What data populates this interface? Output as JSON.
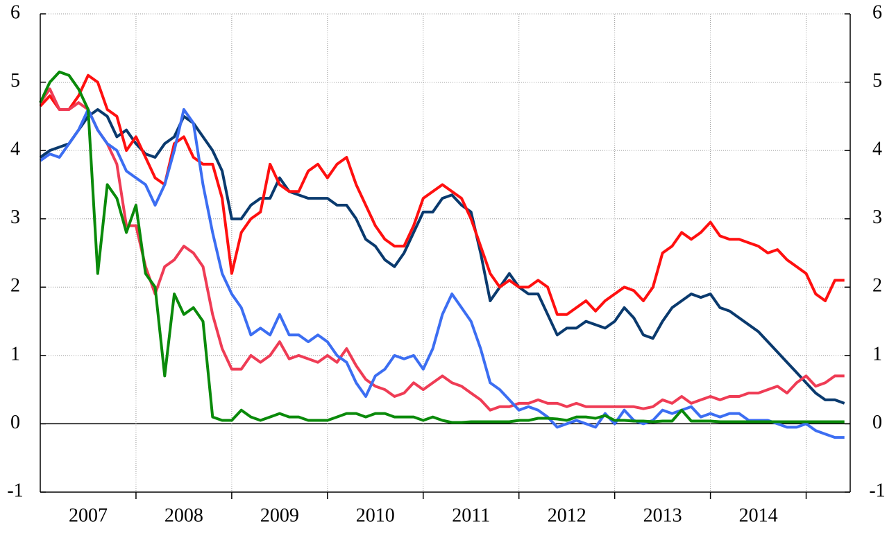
{
  "chart_data": {
    "type": "line",
    "x": [
      2007.0,
      2007.1,
      2007.2,
      2007.3,
      2007.4,
      2007.5,
      2007.6,
      2007.7,
      2007.8,
      2007.9,
      2008.0,
      2008.1,
      2008.2,
      2008.3,
      2008.4,
      2008.5,
      2008.6,
      2008.7,
      2008.8,
      2008.9,
      2009.0,
      2009.1,
      2009.2,
      2009.3,
      2009.4,
      2009.5,
      2009.6,
      2009.7,
      2009.8,
      2009.9,
      2010.0,
      2010.1,
      2010.2,
      2010.3,
      2010.4,
      2010.5,
      2010.6,
      2010.7,
      2010.8,
      2010.9,
      2011.0,
      2011.1,
      2011.2,
      2011.3,
      2011.4,
      2011.5,
      2011.6,
      2011.7,
      2011.8,
      2011.9,
      2012.0,
      2012.1,
      2012.2,
      2012.3,
      2012.4,
      2012.5,
      2012.6,
      2012.7,
      2012.8,
      2012.9,
      2013.0,
      2013.1,
      2013.2,
      2013.3,
      2013.4,
      2013.5,
      2013.6,
      2013.7,
      2013.8,
      2013.9,
      2014.0,
      2014.1,
      2014.2,
      2014.3,
      2014.4,
      2014.5,
      2014.6,
      2014.7,
      2014.8,
      2014.9,
      2015.0,
      2015.1,
      2015.2,
      2015.3,
      2015.4
    ],
    "series": [
      {
        "color": "#0a3a6e",
        "values": [
          3.9,
          4.0,
          4.05,
          4.1,
          4.3,
          4.5,
          4.6,
          4.5,
          4.2,
          4.3,
          4.1,
          3.95,
          3.9,
          4.1,
          4.2,
          4.5,
          4.4,
          4.2,
          4.0,
          3.7,
          3.0,
          3.0,
          3.2,
          3.3,
          3.3,
          3.6,
          3.4,
          3.35,
          3.3,
          3.3,
          3.3,
          3.2,
          3.2,
          3.0,
          2.7,
          2.6,
          2.4,
          2.3,
          2.5,
          2.8,
          3.1,
          3.1,
          3.3,
          3.35,
          3.2,
          3.1,
          2.5,
          1.8,
          2.0,
          2.2,
          2.0,
          1.9,
          1.9,
          1.6,
          1.3,
          1.4,
          1.4,
          1.5,
          1.45,
          1.4,
          1.5,
          1.7,
          1.55,
          1.3,
          1.25,
          1.5,
          1.7,
          1.8,
          1.9,
          1.85,
          1.9,
          1.7,
          1.65,
          1.55,
          1.45,
          1.35,
          1.2,
          1.05,
          0.9,
          0.75,
          0.6,
          0.45,
          0.35,
          0.35,
          0.3
        ]
      },
      {
        "color": "#ff1010",
        "values": [
          4.65,
          4.8,
          4.6,
          4.6,
          4.8,
          5.1,
          5.0,
          4.6,
          4.5,
          4.0,
          4.2,
          3.9,
          3.6,
          3.5,
          4.1,
          4.2,
          3.9,
          3.8,
          3.8,
          3.3,
          2.2,
          2.8,
          3.0,
          3.1,
          3.8,
          3.5,
          3.4,
          3.4,
          3.7,
          3.8,
          3.6,
          3.8,
          3.9,
          3.5,
          3.2,
          2.9,
          2.7,
          2.6,
          2.6,
          2.9,
          3.3,
          3.4,
          3.5,
          3.4,
          3.3,
          3.0,
          2.6,
          2.2,
          2.0,
          2.1,
          2.0,
          2.0,
          2.1,
          2.0,
          1.6,
          1.6,
          1.7,
          1.8,
          1.65,
          1.8,
          1.9,
          2.0,
          1.95,
          1.8,
          2.0,
          2.5,
          2.6,
          2.8,
          2.7,
          2.8,
          2.95,
          2.75,
          2.7,
          2.7,
          2.65,
          2.6,
          2.5,
          2.55,
          2.4,
          2.3,
          2.2,
          1.9,
          1.8,
          2.1,
          2.1
        ]
      },
      {
        "color": "#ef3c55",
        "values": [
          4.7,
          4.9,
          4.6,
          4.6,
          4.7,
          4.6,
          4.3,
          4.1,
          3.8,
          2.9,
          2.9,
          2.3,
          1.9,
          2.3,
          2.4,
          2.6,
          2.5,
          2.3,
          1.6,
          1.1,
          0.8,
          0.8,
          1.0,
          0.9,
          1.0,
          1.2,
          0.95,
          1.0,
          0.95,
          0.9,
          1.0,
          0.9,
          1.1,
          0.85,
          0.65,
          0.55,
          0.5,
          0.4,
          0.45,
          0.6,
          0.5,
          0.6,
          0.7,
          0.6,
          0.55,
          0.45,
          0.35,
          0.2,
          0.25,
          0.25,
          0.3,
          0.3,
          0.35,
          0.3,
          0.3,
          0.25,
          0.3,
          0.25,
          0.25,
          0.25,
          0.25,
          0.25,
          0.25,
          0.22,
          0.25,
          0.35,
          0.3,
          0.4,
          0.3,
          0.35,
          0.4,
          0.35,
          0.4,
          0.4,
          0.45,
          0.45,
          0.5,
          0.55,
          0.45,
          0.6,
          0.7,
          0.55,
          0.6,
          0.7,
          0.7
        ]
      },
      {
        "color": "#3c6ef2",
        "values": [
          3.85,
          3.95,
          3.9,
          4.1,
          4.3,
          4.6,
          4.3,
          4.1,
          4.0,
          3.7,
          3.6,
          3.5,
          3.2,
          3.5,
          4.0,
          4.6,
          4.4,
          3.5,
          2.8,
          2.2,
          1.9,
          1.7,
          1.3,
          1.4,
          1.3,
          1.6,
          1.3,
          1.3,
          1.2,
          1.3,
          1.2,
          1.0,
          0.9,
          0.6,
          0.4,
          0.7,
          0.8,
          1.0,
          0.95,
          1.0,
          0.8,
          1.1,
          1.6,
          1.9,
          1.7,
          1.5,
          1.1,
          0.6,
          0.5,
          0.35,
          0.2,
          0.25,
          0.2,
          0.1,
          -0.05,
          0.0,
          0.05,
          0.0,
          -0.05,
          0.15,
          0.0,
          0.2,
          0.05,
          0.0,
          0.05,
          0.2,
          0.15,
          0.2,
          0.25,
          0.1,
          0.15,
          0.1,
          0.15,
          0.15,
          0.05,
          0.05,
          0.05,
          0.0,
          -0.05,
          -0.05,
          0.0,
          -0.1,
          -0.15,
          -0.2,
          -0.2
        ]
      },
      {
        "color": "#0a8a0a",
        "values": [
          4.7,
          5.0,
          5.15,
          5.1,
          4.9,
          4.6,
          2.2,
          3.5,
          3.3,
          2.8,
          3.2,
          2.2,
          2.0,
          0.7,
          1.9,
          1.6,
          1.7,
          1.5,
          0.1,
          0.05,
          0.05,
          0.2,
          0.1,
          0.05,
          0.1,
          0.15,
          0.1,
          0.1,
          0.05,
          0.05,
          0.05,
          0.1,
          0.15,
          0.15,
          0.1,
          0.15,
          0.15,
          0.1,
          0.1,
          0.1,
          0.05,
          0.1,
          0.05,
          0.02,
          0.02,
          0.03,
          0.03,
          0.03,
          0.03,
          0.03,
          0.05,
          0.05,
          0.08,
          0.08,
          0.07,
          0.05,
          0.1,
          0.1,
          0.08,
          0.12,
          0.05,
          0.05,
          0.04,
          0.04,
          0.03,
          0.04,
          0.04,
          0.2,
          0.04,
          0.04,
          0.04,
          0.03,
          0.03,
          0.03,
          0.03,
          0.03,
          0.03,
          0.03,
          0.03,
          0.03,
          0.03,
          0.03,
          0.03,
          0.03,
          0.03
        ]
      }
    ],
    "xlim": [
      2007,
      2015.46
    ],
    "xticks": [
      {
        "value": 2007.5,
        "label": "2007"
      },
      {
        "value": 2008.5,
        "label": "2008"
      },
      {
        "value": 2009.5,
        "label": "2009"
      },
      {
        "value": 2010.5,
        "label": "2010"
      },
      {
        "value": 2011.5,
        "label": "2011"
      },
      {
        "value": 2012.5,
        "label": "2012"
      },
      {
        "value": 2013.5,
        "label": "2013"
      },
      {
        "value": 2014.5,
        "label": "2014"
      }
    ],
    "xgrid": [
      2008,
      2009,
      2010,
      2011,
      2012,
      2013,
      2014,
      2015
    ],
    "ylim": [
      -1,
      6
    ],
    "yticks": [
      -1,
      0,
      1,
      2,
      3,
      4,
      5,
      6
    ],
    "grid": true
  }
}
